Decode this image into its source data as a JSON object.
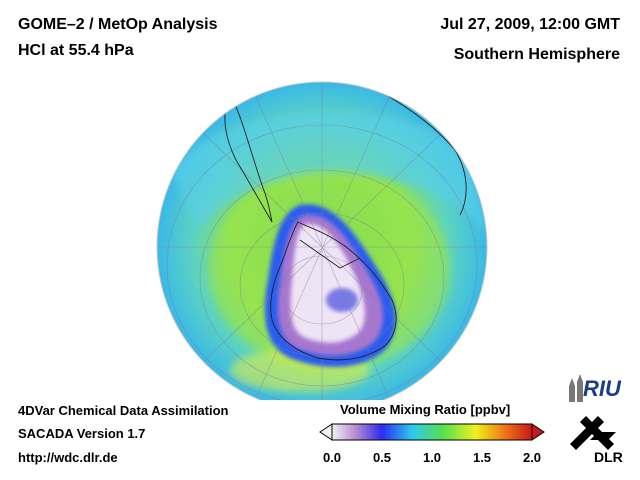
{
  "header": {
    "title_line1": "GOME–2 / MetOp Analysis",
    "title_line2": "HCl at 55.4 hPa",
    "date": "Jul 27, 2009, 12:00 GMT",
    "region": "Southern Hemisphere"
  },
  "footer": {
    "line1": "4DVar Chemical Data Assimilation",
    "line2": "SACADA Version 1.7",
    "line3": "http://wdc.dlr.de"
  },
  "colorbar": {
    "title": "Volume Mixing Ratio [ppbv]",
    "ticks": [
      "0.0",
      "0.5",
      "1.0",
      "1.5",
      "2.0"
    ],
    "range": [
      0.0,
      2.0
    ],
    "colors": [
      "#f4f0f6",
      "#b58ad0",
      "#2c2cf0",
      "#2ec8f0",
      "#50e050",
      "#f0f020",
      "#f07818",
      "#c81818"
    ]
  },
  "logos": {
    "riu": "RIU",
    "dlr": "DLR"
  },
  "map": {
    "projection": "orthographic",
    "hemisphere": "south"
  }
}
